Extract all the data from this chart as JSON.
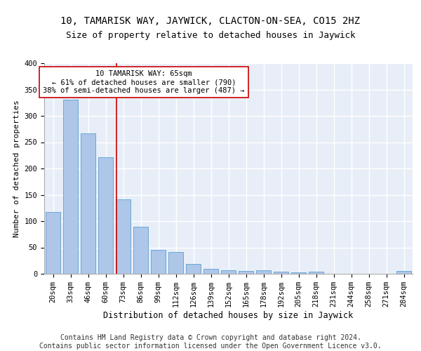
{
  "title1": "10, TAMARISK WAY, JAYWICK, CLACTON-ON-SEA, CO15 2HZ",
  "title2": "Size of property relative to detached houses in Jaywick",
  "xlabel": "Distribution of detached houses by size in Jaywick",
  "ylabel": "Number of detached properties",
  "categories": [
    "20sqm",
    "33sqm",
    "46sqm",
    "60sqm",
    "73sqm",
    "86sqm",
    "99sqm",
    "112sqm",
    "126sqm",
    "139sqm",
    "152sqm",
    "165sqm",
    "178sqm",
    "192sqm",
    "205sqm",
    "218sqm",
    "231sqm",
    "244sqm",
    "258sqm",
    "271sqm",
    "284sqm"
  ],
  "values": [
    117,
    331,
    267,
    222,
    141,
    90,
    45,
    41,
    19,
    10,
    7,
    5,
    7,
    4,
    3,
    4,
    0,
    0,
    0,
    0,
    5
  ],
  "bar_color": "#aec6e8",
  "bar_edge_color": "#5a9fd4",
  "vline_x": 3.62,
  "vline_color": "#cc0000",
  "annotation_line1": "10 TAMARISK WAY: 65sqm",
  "annotation_line2": "← 61% of detached houses are smaller (790)",
  "annotation_line3": "38% of semi-detached houses are larger (487) →",
  "annotation_box_color": "#ffffff",
  "annotation_box_edge": "#cc0000",
  "ylim": [
    0,
    400
  ],
  "yticks": [
    0,
    50,
    100,
    150,
    200,
    250,
    300,
    350,
    400
  ],
  "footer": "Contains HM Land Registry data © Crown copyright and database right 2024.\nContains public sector information licensed under the Open Government Licence v3.0.",
  "background_color": "#e8eef8",
  "grid_color": "#ffffff",
  "title1_fontsize": 10,
  "title2_fontsize": 9,
  "xlabel_fontsize": 8.5,
  "ylabel_fontsize": 8,
  "tick_fontsize": 7.5,
  "annotation_fontsize": 7.5,
  "footer_fontsize": 7
}
